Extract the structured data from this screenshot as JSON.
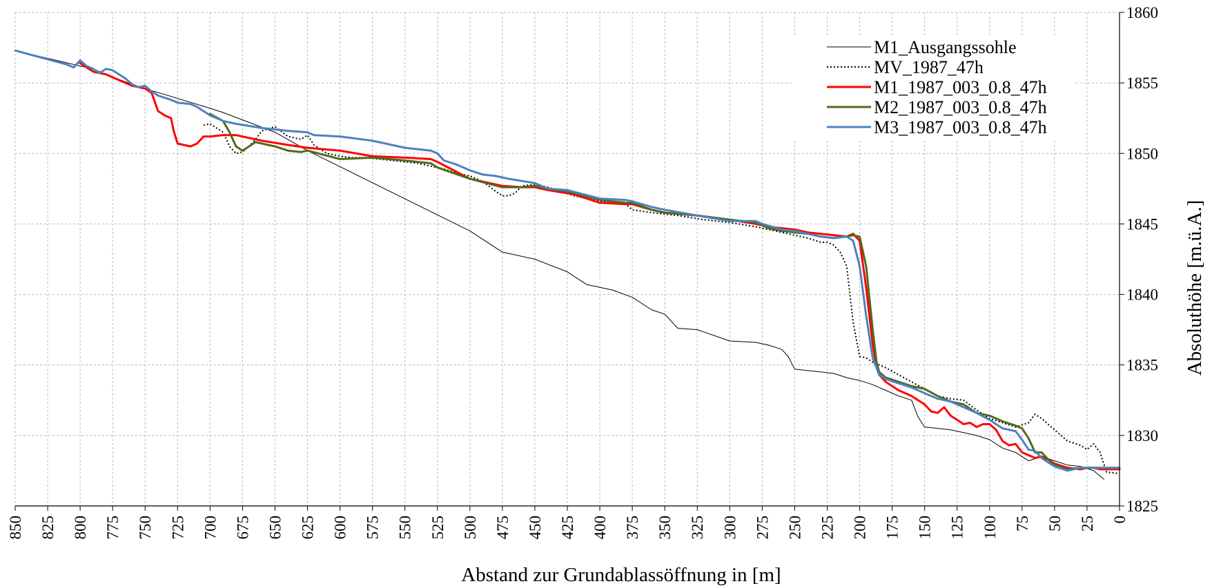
{
  "chart_data": {
    "type": "line",
    "title": "",
    "xlabel": "Abstand zur Grundablassöffnung in [m]",
    "ylabel": "Absoluthöhe [m.ü.A.]",
    "x_reversed": true,
    "xlim": [
      0,
      850
    ],
    "ylim": [
      1825,
      1860
    ],
    "xticks": [
      850,
      825,
      800,
      775,
      750,
      725,
      700,
      675,
      650,
      625,
      600,
      575,
      550,
      525,
      500,
      475,
      450,
      425,
      400,
      375,
      350,
      325,
      300,
      275,
      250,
      225,
      200,
      175,
      150,
      125,
      100,
      75,
      50,
      25,
      0
    ],
    "yticks": [
      1825,
      1830,
      1835,
      1840,
      1845,
      1850,
      1855,
      1860
    ],
    "grid": true,
    "y_axis_side": "right",
    "legend_position": "top-right",
    "series": [
      {
        "name": "M1_Ausgangssohle",
        "color": "#000000",
        "style": "solid",
        "width": 1,
        "x": [
          850,
          800,
          790,
          780,
          760,
          750,
          700,
          690,
          650,
          625,
          500,
          475,
          450,
          425,
          410,
          390,
          375,
          360,
          350,
          340,
          325,
          300,
          280,
          270,
          260,
          255,
          250,
          240,
          230,
          220,
          210,
          200,
          190,
          180,
          170,
          160,
          155,
          150,
          140,
          130,
          120,
          110,
          100,
          90,
          80,
          70,
          60,
          50,
          40,
          30,
          20,
          12
        ],
        "y": [
          1857.3,
          1856.2,
          1856.0,
          1855.6,
          1854.9,
          1854.6,
          1853.2,
          1852.9,
          1851.5,
          1850.2,
          1844.5,
          1843.0,
          1842.5,
          1841.6,
          1840.7,
          1840.3,
          1839.8,
          1838.9,
          1838.6,
          1837.6,
          1837.5,
          1836.7,
          1836.6,
          1836.4,
          1836.1,
          1835.6,
          1834.7,
          1834.6,
          1834.5,
          1834.4,
          1834.1,
          1833.9,
          1833.6,
          1833.2,
          1832.8,
          1832.5,
          1831.3,
          1830.6,
          1830.5,
          1830.4,
          1830.2,
          1830.0,
          1829.7,
          1829.1,
          1828.8,
          1828.2,
          1828.5,
          1828.2,
          1827.9,
          1827.8,
          1827.5,
          1826.9
        ]
      },
      {
        "name": "MV_1987_47h",
        "color": "#000000",
        "style": "dotted",
        "width": 2,
        "x": [
          705,
          700,
          690,
          685,
          680,
          675,
          670,
          665,
          660,
          650,
          640,
          630,
          625,
          620,
          610,
          600,
          590,
          580,
          570,
          560,
          550,
          540,
          530,
          520,
          510,
          500,
          490,
          480,
          475,
          470,
          465,
          460,
          450,
          440,
          430,
          420,
          400,
          380,
          375,
          360,
          340,
          320,
          300,
          280,
          260,
          240,
          230,
          225,
          220,
          215,
          210,
          205,
          200,
          195,
          190,
          180,
          170,
          160,
          150,
          140,
          130,
          120,
          110,
          100,
          90,
          80,
          70,
          65,
          60,
          50,
          45,
          40,
          30,
          25,
          20,
          15,
          10,
          0
        ],
        "y": [
          1852.0,
          1852.1,
          1851.5,
          1850.5,
          1850.0,
          1850.1,
          1850.5,
          1851.0,
          1851.6,
          1851.9,
          1851.2,
          1851.0,
          1851.3,
          1850.6,
          1850.0,
          1849.8,
          1849.7,
          1849.7,
          1849.6,
          1849.5,
          1849.4,
          1849.3,
          1849.1,
          1848.9,
          1848.6,
          1848.4,
          1848.0,
          1847.3,
          1847.0,
          1847.0,
          1847.2,
          1847.7,
          1847.8,
          1847.6,
          1847.3,
          1847.0,
          1846.6,
          1846.4,
          1846.0,
          1845.8,
          1845.6,
          1845.3,
          1845.1,
          1844.8,
          1844.4,
          1844.0,
          1843.7,
          1843.7,
          1843.5,
          1843.0,
          1842.0,
          1838.0,
          1835.6,
          1835.5,
          1835.2,
          1834.8,
          1834.3,
          1833.8,
          1833.3,
          1832.8,
          1832.6,
          1832.5,
          1831.8,
          1831.2,
          1830.9,
          1830.6,
          1830.9,
          1831.5,
          1831.2,
          1830.4,
          1830.0,
          1829.6,
          1829.3,
          1829.0,
          1829.4,
          1828.8,
          1827.4,
          1827.3
        ]
      },
      {
        "name": "M1_1987_003_0.8_47h",
        "color": "#ff0000",
        "style": "solid",
        "width": 3,
        "x": [
          800,
          790,
          780,
          770,
          760,
          750,
          745,
          740,
          735,
          730,
          728,
          725,
          715,
          710,
          705,
          700,
          690,
          680,
          675,
          660,
          640,
          625,
          600,
          575,
          550,
          530,
          525,
          500,
          475,
          460,
          450,
          440,
          420,
          400,
          380,
          375,
          360,
          350,
          325,
          300,
          280,
          270,
          260,
          250,
          240,
          230,
          220,
          210,
          205,
          200,
          195,
          190,
          187,
          185,
          180,
          170,
          160,
          150,
          145,
          140,
          135,
          130,
          125,
          120,
          115,
          110,
          105,
          100,
          95,
          90,
          85,
          80,
          75,
          70,
          65,
          60,
          55,
          50,
          40,
          30,
          25,
          20,
          15,
          10,
          0
        ],
        "y": [
          1856.4,
          1855.8,
          1855.6,
          1855.2,
          1854.8,
          1854.6,
          1854.3,
          1853.0,
          1852.7,
          1852.5,
          1851.6,
          1850.7,
          1850.5,
          1850.7,
          1851.2,
          1851.2,
          1851.3,
          1851.3,
          1851.2,
          1850.9,
          1850.6,
          1850.4,
          1850.2,
          1849.8,
          1849.7,
          1849.6,
          1849.4,
          1848.2,
          1847.7,
          1847.6,
          1847.6,
          1847.4,
          1847.1,
          1846.5,
          1846.4,
          1846.4,
          1846.0,
          1845.8,
          1845.6,
          1845.3,
          1845.0,
          1844.8,
          1844.7,
          1844.6,
          1844.4,
          1844.3,
          1844.2,
          1844.1,
          1844.3,
          1843.8,
          1840.5,
          1836.5,
          1834.8,
          1834.3,
          1833.8,
          1833.2,
          1832.8,
          1832.2,
          1831.7,
          1831.6,
          1832.0,
          1831.4,
          1831.1,
          1830.8,
          1830.9,
          1830.6,
          1830.8,
          1830.8,
          1830.4,
          1829.6,
          1829.3,
          1829.4,
          1828.8,
          1828.6,
          1828.4,
          1828.5,
          1828.3,
          1828.0,
          1827.7,
          1827.6,
          1827.7,
          1827.7,
          1827.6,
          1827.6,
          1827.6
        ]
      },
      {
        "name": "M2_1987_003_0.8_47h",
        "color": "#4e6b1d",
        "style": "solid",
        "width": 3,
        "x": [
          700,
          690,
          685,
          680,
          675,
          670,
          665,
          660,
          650,
          640,
          630,
          625,
          600,
          575,
          550,
          530,
          525,
          500,
          475,
          460,
          450,
          440,
          420,
          400,
          380,
          375,
          360,
          350,
          325,
          300,
          280,
          270,
          260,
          250,
          240,
          230,
          220,
          210,
          205,
          200,
          195,
          190,
          187,
          185,
          180,
          170,
          160,
          150,
          140,
          130,
          120,
          110,
          100,
          90,
          80,
          75,
          70,
          65,
          60,
          55,
          50,
          40,
          30,
          25,
          20,
          15,
          10,
          0
        ],
        "y": [
          1852.8,
          1852.3,
          1851.5,
          1850.5,
          1850.2,
          1850.5,
          1850.8,
          1850.7,
          1850.5,
          1850.2,
          1850.1,
          1850.2,
          1849.6,
          1849.7,
          1849.5,
          1849.3,
          1849.0,
          1848.2,
          1847.6,
          1847.6,
          1847.7,
          1847.5,
          1847.2,
          1846.7,
          1846.5,
          1846.5,
          1846.0,
          1845.8,
          1845.6,
          1845.3,
          1845.1,
          1844.7,
          1844.5,
          1844.4,
          1844.3,
          1844.1,
          1844.0,
          1844.1,
          1844.2,
          1844.1,
          1842.0,
          1837.5,
          1835.2,
          1834.5,
          1834.1,
          1833.8,
          1833.5,
          1833.3,
          1832.8,
          1832.4,
          1832.2,
          1831.6,
          1831.4,
          1831.0,
          1830.7,
          1830.5,
          1829.8,
          1828.8,
          1828.8,
          1828.3,
          1827.9,
          1827.6,
          1827.7,
          1827.7,
          1827.7,
          1827.7,
          1827.7,
          1827.7
        ]
      },
      {
        "name": "M3_1987_003_0.8_47h",
        "color": "#4f81bd",
        "style": "solid",
        "width": 3,
        "x": [
          850,
          810,
          805,
          800,
          795,
          790,
          785,
          780,
          775,
          770,
          765,
          760,
          755,
          750,
          745,
          740,
          730,
          725,
          715,
          710,
          705,
          700,
          690,
          680,
          660,
          640,
          625,
          620,
          600,
          575,
          560,
          550,
          530,
          525,
          520,
          510,
          500,
          490,
          480,
          470,
          450,
          440,
          425,
          400,
          380,
          375,
          360,
          350,
          325,
          300,
          280,
          275,
          260,
          250,
          240,
          230,
          220,
          210,
          205,
          200,
          195,
          190,
          185,
          180,
          170,
          160,
          150,
          140,
          130,
          120,
          110,
          100,
          90,
          80,
          75,
          70,
          65,
          60,
          55,
          50,
          40,
          30,
          25,
          20,
          15,
          10,
          0
        ],
        "y": [
          1857.3,
          1856.3,
          1856.1,
          1856.6,
          1856.2,
          1856.0,
          1855.7,
          1856.0,
          1855.9,
          1855.6,
          1855.3,
          1854.9,
          1854.7,
          1854.8,
          1854.4,
          1854.1,
          1853.8,
          1853.6,
          1853.5,
          1853.3,
          1853.0,
          1852.7,
          1852.3,
          1852.1,
          1851.8,
          1851.6,
          1851.5,
          1851.3,
          1851.2,
          1850.9,
          1850.6,
          1850.4,
          1850.2,
          1850.0,
          1849.5,
          1849.2,
          1848.8,
          1848.5,
          1848.4,
          1848.2,
          1847.9,
          1847.5,
          1847.4,
          1846.8,
          1846.7,
          1846.6,
          1846.2,
          1846.0,
          1845.6,
          1845.2,
          1845.2,
          1845.0,
          1844.6,
          1844.5,
          1844.3,
          1844.1,
          1844.0,
          1844.1,
          1843.8,
          1842.0,
          1838.5,
          1835.5,
          1834.3,
          1834.0,
          1833.7,
          1833.4,
          1833.0,
          1832.6,
          1832.4,
          1832.0,
          1831.6,
          1831.1,
          1830.5,
          1830.3,
          1829.7,
          1829.0,
          1828.9,
          1828.4,
          1828.1,
          1827.8,
          1827.5,
          1827.7,
          1827.7,
          1827.7,
          1827.7,
          1827.7,
          1827.7
        ]
      }
    ]
  }
}
